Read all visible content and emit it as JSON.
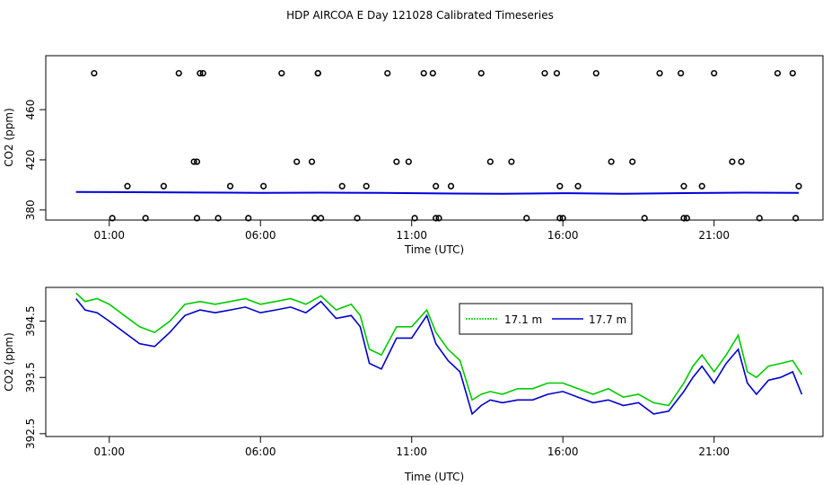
{
  "title": "HDP AIRCOA E  Day 121028  Calibrated Timeseries",
  "chart_data": [
    {
      "type": "line",
      "panel": "top",
      "xlabel": "Time (UTC)",
      "ylabel": "CO2 (ppm)",
      "xlim": [
        -1.1,
        24.6
      ],
      "ylim": [
        372,
        503
      ],
      "x_ticks": [
        1,
        6,
        11,
        16,
        21
      ],
      "x_tick_labels": [
        "01:00",
        "06:00",
        "11:00",
        "16:00",
        "21:00"
      ],
      "y_ticks": [
        380,
        420,
        460
      ],
      "y_tick_labels": [
        "380",
        "420",
        "460"
      ],
      "grid": false,
      "line_series": {
        "name": "",
        "color": "#0000dd",
        "x": [
          -0.1,
          2,
          4,
          6,
          8,
          10,
          12,
          14,
          16,
          18,
          20,
          22,
          23.8
        ],
        "y": [
          394.3,
          394.2,
          393.9,
          393.7,
          393.8,
          393.6,
          393.2,
          392.9,
          393.4,
          393.0,
          393.5,
          393.8,
          393.6
        ]
      },
      "scatter_points": {
        "name": "",
        "x": [
          0.5,
          1.1,
          1.6,
          2.2,
          2.8,
          3.3,
          3.8,
          3.9,
          3.9,
          4.0,
          4.1,
          4.6,
          5.0,
          5.6,
          6.1,
          6.7,
          7.2,
          7.7,
          7.8,
          7.9,
          7.9,
          8.0,
          8.7,
          9.2,
          9.5,
          10.2,
          10.5,
          10.9,
          11.1,
          11.4,
          11.7,
          11.8,
          11.8,
          11.9,
          12.3,
          13.3,
          13.6,
          14.3,
          14.8,
          15.4,
          15.8,
          15.9,
          15.9,
          16.0,
          16.5,
          17.1,
          17.6,
          18.3,
          18.7,
          19.2,
          19.9,
          20.0,
          20.0,
          20.1,
          20.6,
          21.0,
          21.6,
          21.9,
          22.5,
          23.1,
          23.6,
          23.7,
          23.8
        ]
      }
    },
    {
      "type": "line",
      "panel": "bottom",
      "xlabel": "Time (UTC)",
      "ylabel": "CO2 (ppm)",
      "xlim": [
        -1.1,
        24.6
      ],
      "ylim": [
        392.45,
        395.1
      ],
      "x_ticks": [
        1,
        6,
        11,
        16,
        21
      ],
      "x_tick_labels": [
        "01:00",
        "06:00",
        "11:00",
        "16:00",
        "21:00"
      ],
      "y_ticks": [
        392.5,
        393.5,
        394.5
      ],
      "y_tick_labels": [
        "392.5",
        "393.5",
        "394.5"
      ],
      "grid": false,
      "legend_position": "top-center",
      "series": [
        {
          "name": "17.1 m",
          "color": "#00cc00",
          "x": [
            -0.1,
            0.2,
            0.6,
            1.0,
            1.5,
            2.0,
            2.5,
            3.0,
            3.5,
            4.0,
            4.5,
            5.0,
            5.5,
            6.0,
            6.5,
            7.0,
            7.5,
            8.0,
            8.5,
            9.0,
            9.3,
            9.6,
            10.0,
            10.5,
            11.0,
            11.5,
            11.8,
            12.2,
            12.6,
            13.0,
            13.3,
            13.6,
            14.0,
            14.5,
            15.0,
            15.5,
            16.0,
            16.5,
            17.0,
            17.5,
            18.0,
            18.5,
            19.0,
            19.5,
            20.0,
            20.3,
            20.6,
            21.0,
            21.4,
            21.8,
            22.1,
            22.4,
            22.8,
            23.2,
            23.6,
            23.9
          ],
          "y": [
            395.0,
            394.85,
            394.9,
            394.8,
            394.6,
            394.4,
            394.3,
            394.5,
            394.8,
            394.85,
            394.8,
            394.85,
            394.9,
            394.8,
            394.85,
            394.9,
            394.8,
            394.95,
            394.7,
            394.8,
            394.6,
            394.0,
            393.9,
            394.4,
            394.4,
            394.7,
            394.3,
            394.0,
            393.8,
            393.1,
            393.2,
            393.25,
            393.2,
            393.3,
            393.3,
            393.4,
            393.4,
            393.3,
            393.2,
            393.3,
            393.15,
            393.2,
            393.05,
            393.0,
            393.4,
            393.7,
            393.9,
            393.6,
            393.9,
            394.25,
            393.6,
            393.5,
            393.7,
            393.75,
            393.8,
            393.55
          ]
        },
        {
          "name": "17.7 m",
          "color": "#0000cc",
          "x": [
            -0.1,
            0.2,
            0.6,
            1.0,
            1.5,
            2.0,
            2.5,
            3.0,
            3.5,
            4.0,
            4.5,
            5.0,
            5.5,
            6.0,
            6.5,
            7.0,
            7.5,
            8.0,
            8.5,
            9.0,
            9.3,
            9.6,
            10.0,
            10.5,
            11.0,
            11.5,
            11.8,
            12.2,
            12.6,
            13.0,
            13.3,
            13.6,
            14.0,
            14.5,
            15.0,
            15.5,
            16.0,
            16.5,
            17.0,
            17.5,
            18.0,
            18.5,
            19.0,
            19.5,
            20.0,
            20.3,
            20.6,
            21.0,
            21.4,
            21.8,
            22.1,
            22.4,
            22.8,
            23.2,
            23.6,
            23.9
          ],
          "y": [
            394.9,
            394.7,
            394.65,
            394.5,
            394.3,
            394.1,
            394.05,
            394.3,
            394.6,
            394.7,
            394.65,
            394.7,
            394.75,
            394.65,
            394.7,
            394.75,
            394.65,
            394.85,
            394.55,
            394.6,
            394.4,
            393.75,
            393.65,
            394.2,
            394.2,
            394.6,
            394.1,
            393.8,
            393.6,
            392.85,
            393.0,
            393.1,
            393.05,
            393.1,
            393.1,
            393.2,
            393.25,
            393.15,
            393.05,
            393.1,
            393.0,
            393.05,
            392.85,
            392.9,
            393.25,
            393.5,
            393.7,
            393.4,
            393.75,
            394.0,
            393.4,
            393.2,
            393.45,
            393.5,
            393.6,
            393.2
          ]
        }
      ]
    }
  ]
}
